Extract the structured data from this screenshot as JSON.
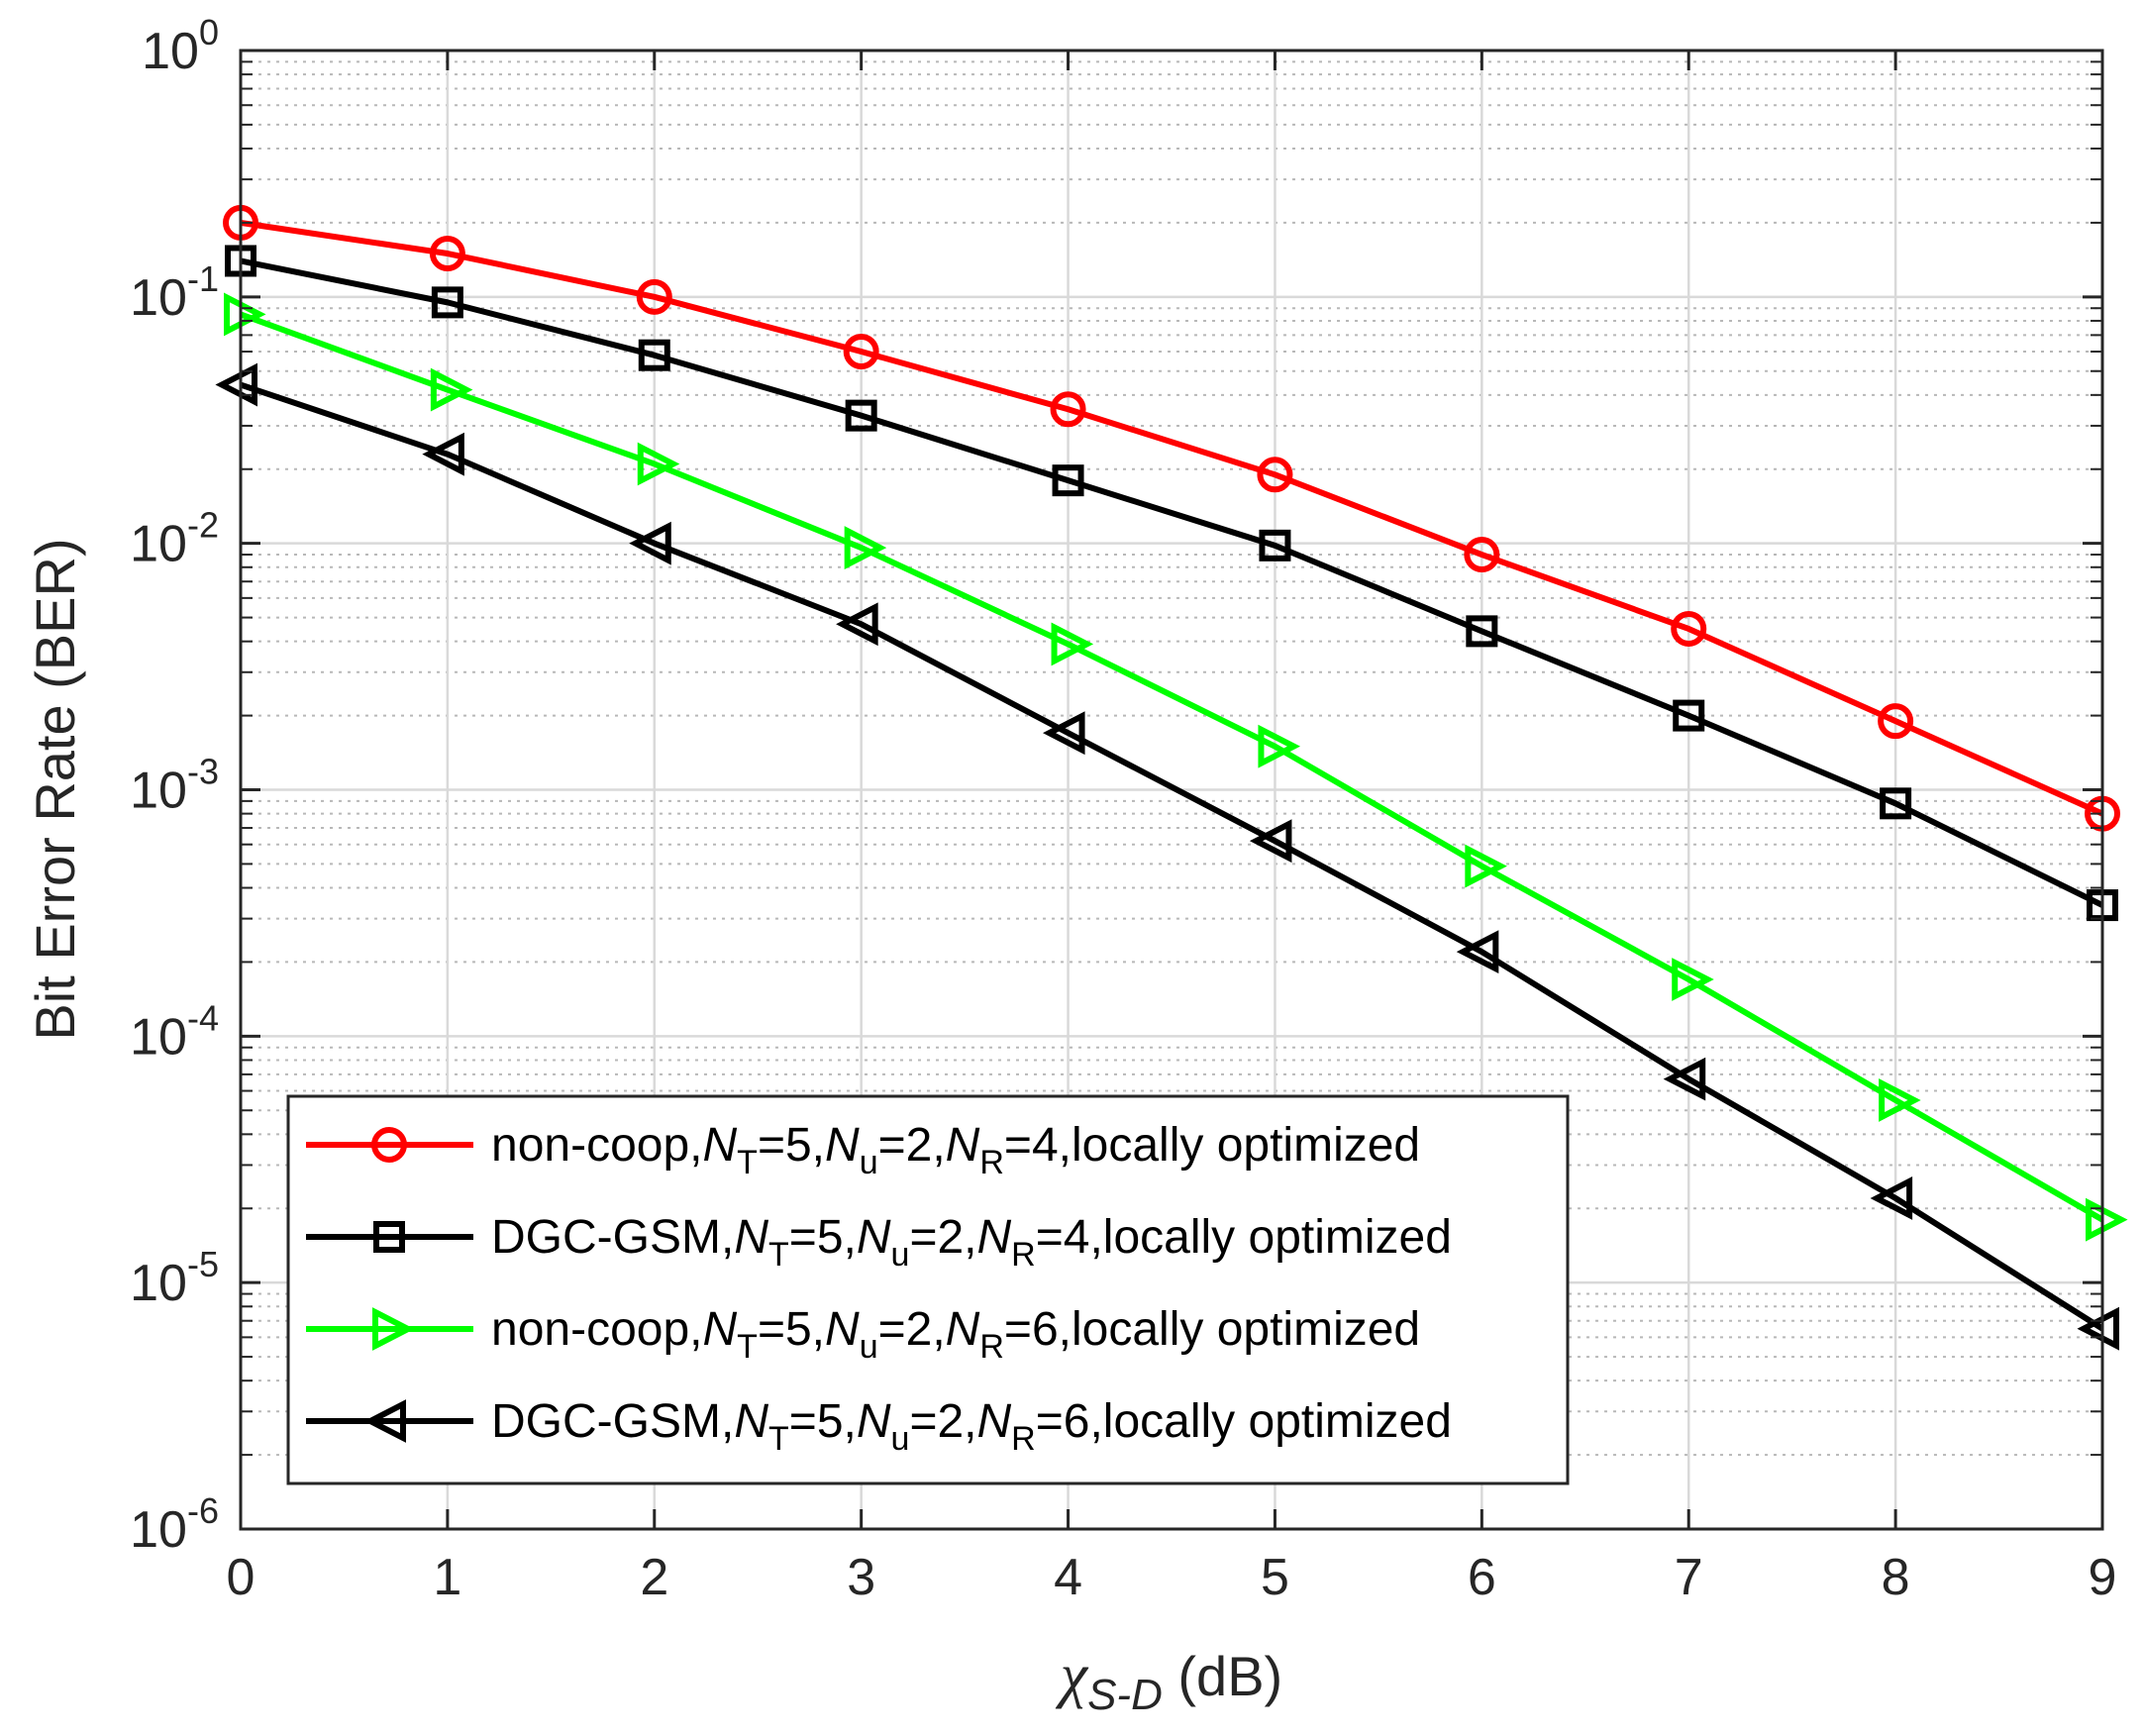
{
  "chart_data": {
    "type": "line",
    "xlabel_symbol": "χ",
    "xlabel_subscript": "S-D",
    "xlabel_unit": " (dB)",
    "ylabel": "Bit Error Rate (BER)",
    "xlim": [
      0,
      9
    ],
    "ylim_exponents": [
      -6,
      0
    ],
    "y_scale": "log",
    "grid": true,
    "legend_position": "bottom-left",
    "x_ticks": [
      "0",
      "1",
      "2",
      "3",
      "4",
      "5",
      "6",
      "7",
      "8",
      "9"
    ],
    "y_ticks": [
      {
        "exp": 0,
        "base": "10",
        "sup": "0"
      },
      {
        "exp": -1,
        "base": "10",
        "sup": "-1"
      },
      {
        "exp": -2,
        "base": "10",
        "sup": "-2"
      },
      {
        "exp": -3,
        "base": "10",
        "sup": "-3"
      },
      {
        "exp": -4,
        "base": "10",
        "sup": "-4"
      },
      {
        "exp": -5,
        "base": "10",
        "sup": "-5"
      },
      {
        "exp": -6,
        "base": "10",
        "sup": "-6"
      }
    ],
    "x": [
      0,
      1,
      2,
      3,
      4,
      5,
      6,
      7,
      8,
      9
    ],
    "series": [
      {
        "name": "non-coop,NT=5,Nu=2,NR=4,locally optimized",
        "legend": {
          "prefix": "non-coop,",
          "nt": "=5,",
          "nu": "=2,",
          "nr": "=4,locally optimized"
        },
        "color": "#ff0000",
        "marker": "circle",
        "values": [
          0.2,
          0.15,
          0.1,
          0.06,
          0.035,
          0.019,
          0.009,
          0.0045,
          0.0019,
          0.0008
        ]
      },
      {
        "name": "DGC-GSM,NT=5,Nu=2,NR=4,locally optimized",
        "legend": {
          "prefix": "DGC-GSM,",
          "nt": "=5,",
          "nu": "=2,",
          "nr": "=4,locally optimized"
        },
        "color": "#000000",
        "marker": "square",
        "values": [
          0.14,
          0.095,
          0.058,
          0.033,
          0.018,
          0.0098,
          0.0044,
          0.002,
          0.00088,
          0.00034
        ]
      },
      {
        "name": "non-coop,NT=5,Nu=2,NR=6,locally optimized",
        "legend": {
          "prefix": "non-coop,",
          "nt": "=5,",
          "nu": "=2,",
          "nr": "=6,locally optimized"
        },
        "color": "#00ff00",
        "marker": "triangle-right",
        "values": [
          0.085,
          0.042,
          0.021,
          0.0096,
          0.0039,
          0.0015,
          0.00049,
          0.00017,
          5.5e-05,
          1.8e-05
        ]
      },
      {
        "name": "DGC-GSM,NT=5,Nu=2,NR=6,locally optimized",
        "legend": {
          "prefix": "DGC-GSM,",
          "nt": "=5,",
          "nu": "=2,",
          "nr": "=6,locally optimized"
        },
        "color": "#000000",
        "marker": "triangle-left",
        "values": [
          0.044,
          0.023,
          0.01,
          0.0047,
          0.0017,
          0.00062,
          0.00022,
          6.7e-05,
          2.2e-05,
          6.5e-06
        ]
      }
    ]
  }
}
